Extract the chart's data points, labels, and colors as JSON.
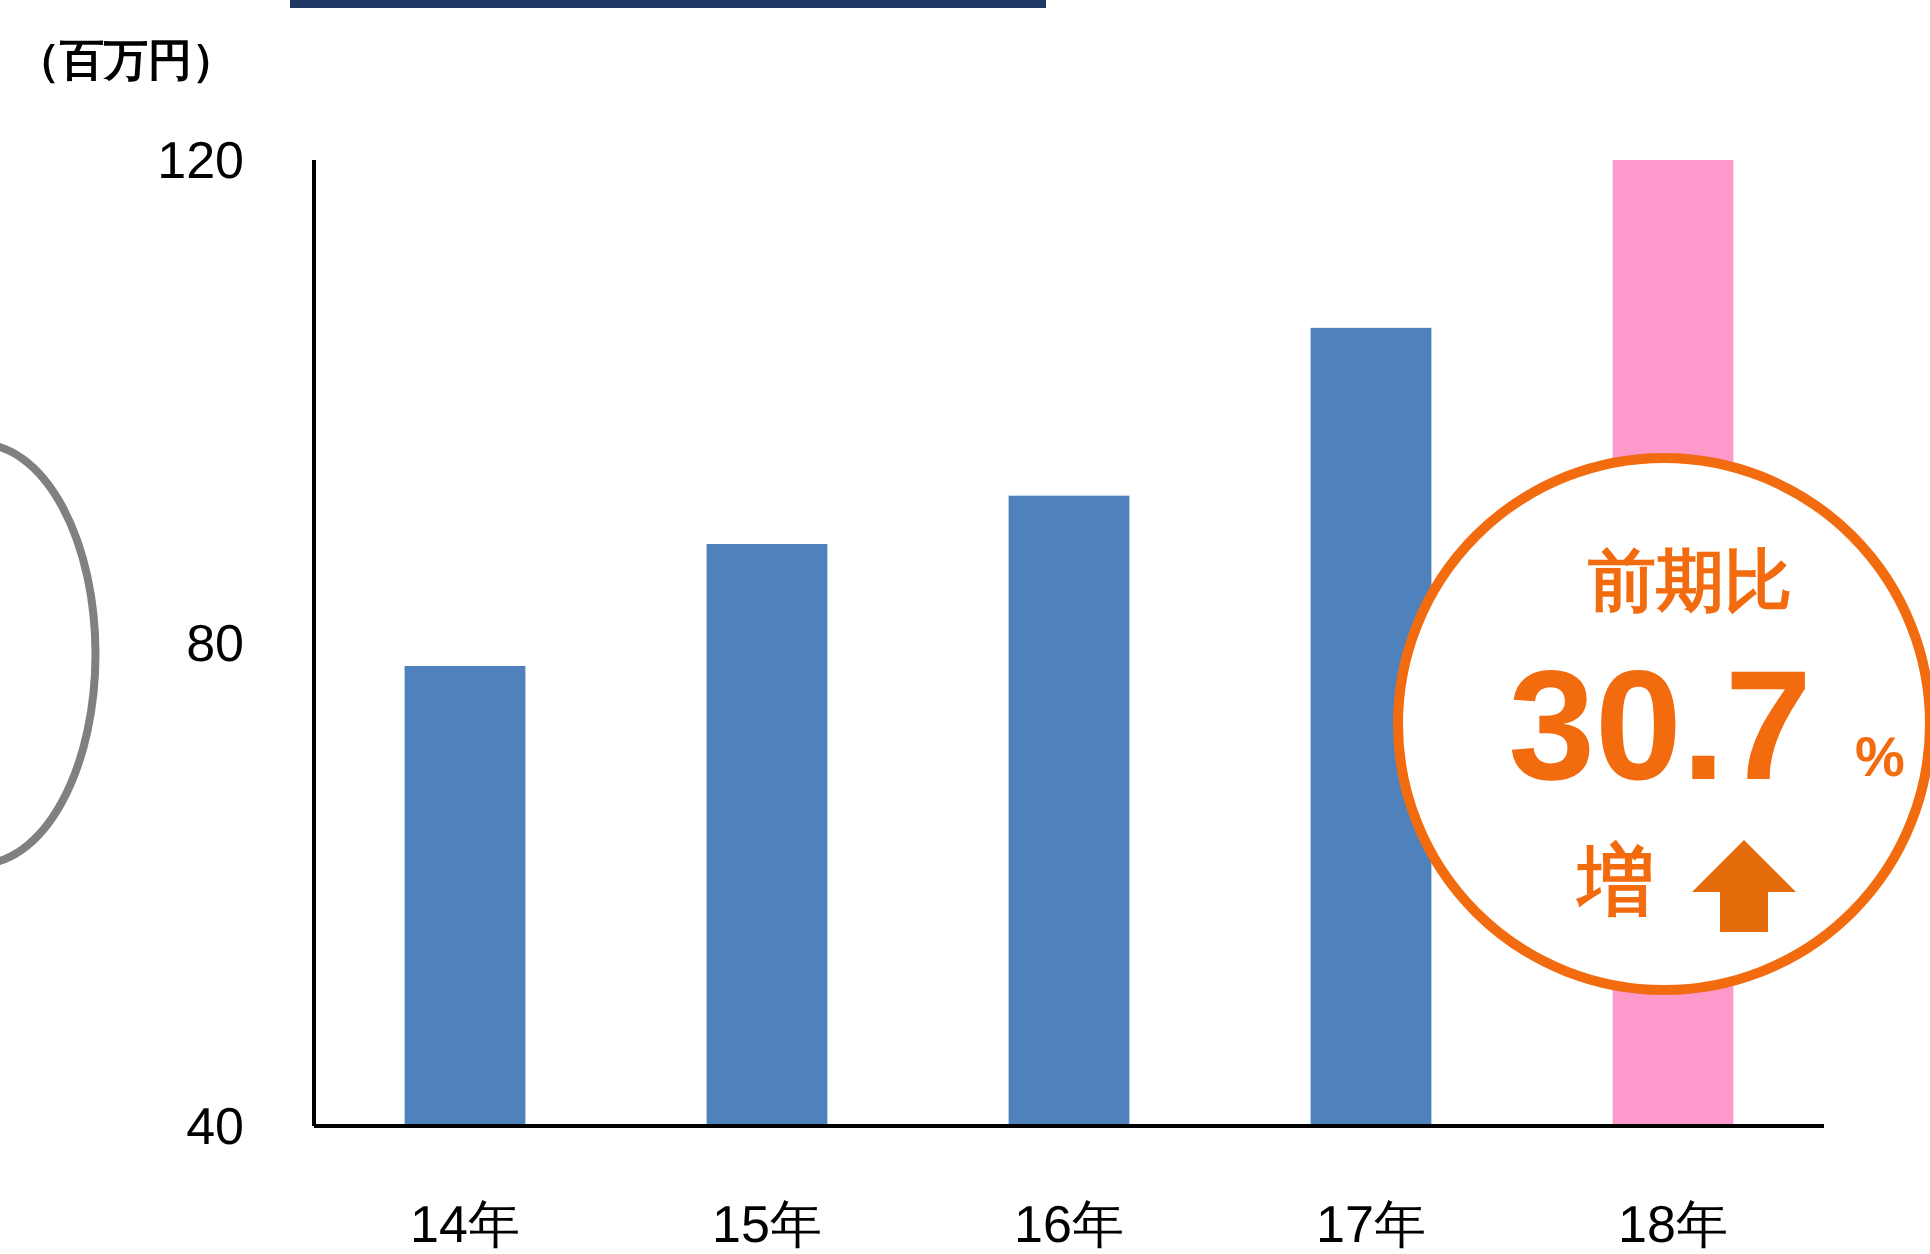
{
  "chart_data": {
    "type": "bar",
    "ylabel": "（百万円）",
    "categories": [
      "14年",
      "15年",
      "16年",
      "17年",
      "18年"
    ],
    "values": [
      78.1,
      88.2,
      92.2,
      106.1,
      120
    ],
    "colors": [
      "#4f81bd",
      "#4f81bd",
      "#4f81bd",
      "#4f81bd",
      "#ff99cc"
    ],
    "ylim": [
      40,
      120
    ],
    "yticks": [
      40,
      80,
      120
    ],
    "grid": false,
    "annotations": [
      "前期比",
      "30.7",
      "%",
      "増"
    ]
  }
}
